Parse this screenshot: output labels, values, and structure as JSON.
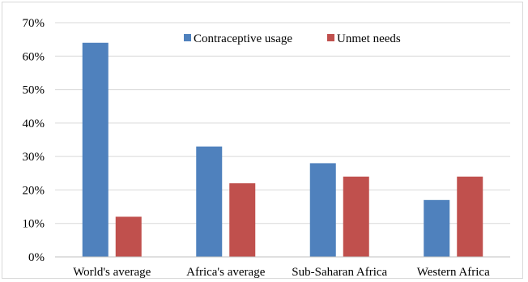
{
  "chart_data": {
    "type": "bar",
    "title": "",
    "xlabel": "",
    "ylabel": "",
    "categories": [
      "World's average",
      "Africa's average",
      "Sub-Saharan Africa",
      "Western Africa"
    ],
    "series": [
      {
        "name": "Contraceptive usage",
        "values": [
          64,
          33,
          28,
          17
        ],
        "color": "#4f81bd"
      },
      {
        "name": "Unmet needs",
        "values": [
          12,
          22,
          24,
          24
        ],
        "color": "#c0504d"
      }
    ],
    "ylim": [
      0,
      70
    ],
    "y_ticks": [
      0,
      10,
      20,
      30,
      40,
      50,
      60,
      70
    ],
    "y_tick_labels": [
      "0%",
      "10%",
      "20%",
      "30%",
      "40%",
      "50%",
      "60%",
      "70%"
    ],
    "grid": true,
    "legend_position": "top-right"
  }
}
